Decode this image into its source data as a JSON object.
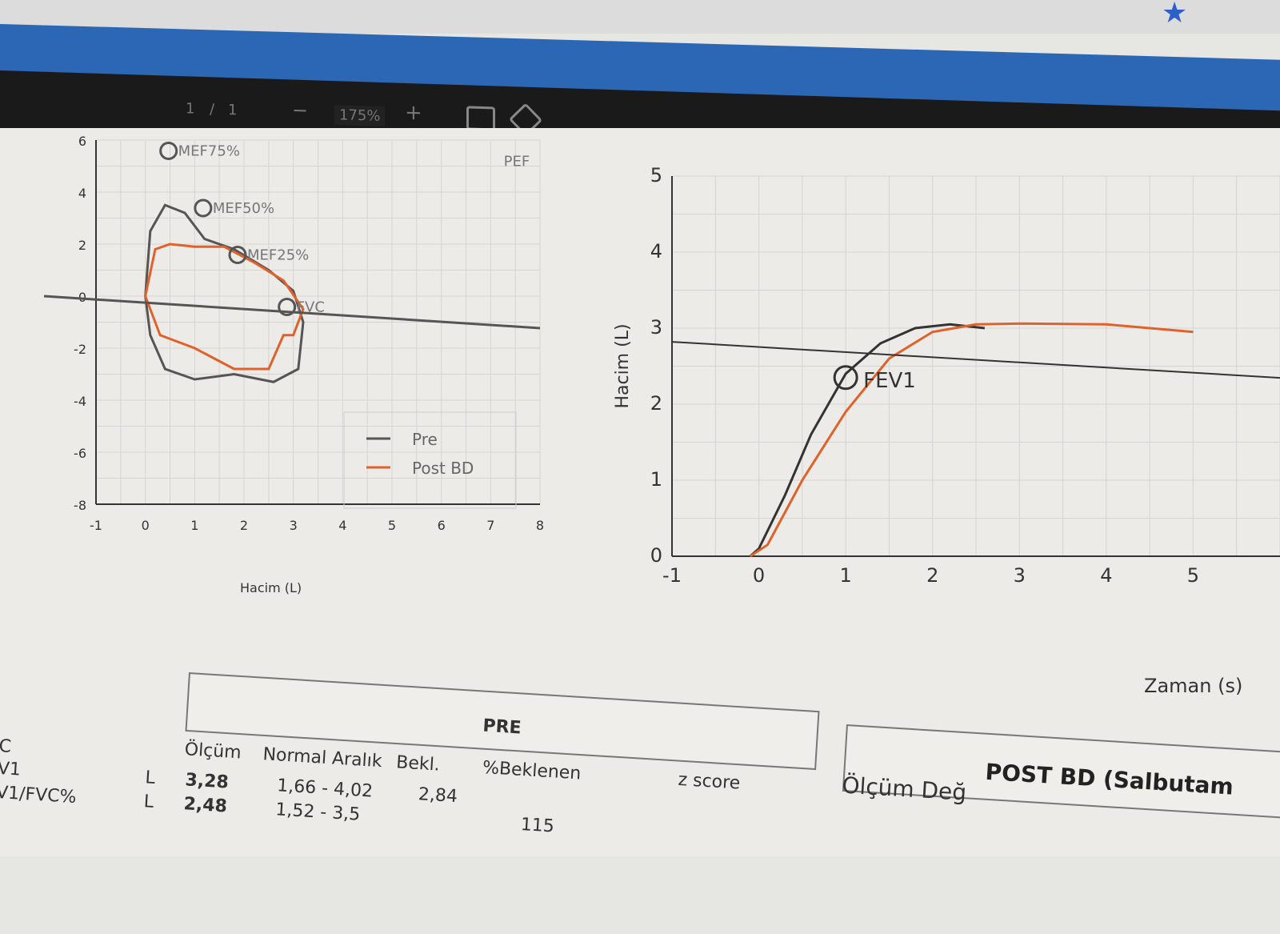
{
  "browser": {
    "bookmark_icon": "star-icon",
    "bookmark_color": "#2f5fc8"
  },
  "toolbar": {
    "page_current": "1",
    "page_sep": "/",
    "page_total": "1",
    "zoom_out": "−",
    "zoom": "175%",
    "zoom_in": "+",
    "fit_icon": "fit-page-icon",
    "rotate_icon": "rotate-icon"
  },
  "chart_data": [
    {
      "type": "line",
      "title": "",
      "xlabel": "Hacim (L)",
      "ylabel": "",
      "xlim": [
        -1,
        8
      ],
      "ylim": [
        -8,
        6
      ],
      "xticks": [
        "-1",
        "0",
        "1",
        "2",
        "3",
        "4",
        "5",
        "6",
        "7",
        "8"
      ],
      "yticks": [
        "6",
        "4",
        "2",
        "0",
        "-2",
        "-4",
        "-6",
        "-8"
      ],
      "annotations": [
        "MEF75%",
        "MEF50%",
        "MEF25%",
        "PEF",
        "FVC"
      ],
      "legend": [
        "Pre",
        "Post BD"
      ],
      "legend_position": "bottom-right",
      "grid": true,
      "series": [
        {
          "name": "Pre",
          "color": "#555555",
          "x": [
            0,
            0.1,
            0.4,
            0.8,
            1.2,
            1.8,
            2.5,
            3.0,
            3.2,
            3.1,
            2.6,
            1.8,
            1.0,
            0.4,
            0.1,
            0
          ],
          "y": [
            0,
            2.5,
            3.5,
            3.2,
            2.2,
            1.8,
            1.0,
            0.2,
            -1,
            -2.8,
            -3.3,
            -3.0,
            -3.2,
            -2.8,
            -1.5,
            0
          ]
        },
        {
          "name": "Post BD",
          "color": "#e0622a",
          "x": [
            0,
            0.2,
            0.5,
            1.0,
            1.6,
            2.2,
            2.8,
            3.2,
            3.0,
            2.8,
            2.5,
            1.8,
            1.0,
            0.3,
            0
          ],
          "y": [
            0,
            1.8,
            2.0,
            1.9,
            1.9,
            1.3,
            0.6,
            -0.5,
            -1.5,
            -1.5,
            -2.8,
            -2.8,
            -2.0,
            -1.5,
            0
          ]
        }
      ]
    },
    {
      "type": "line",
      "title": "",
      "xlabel": "Zaman (s)",
      "ylabel": "Hacim (L)",
      "xlim": [
        -1,
        6
      ],
      "ylim": [
        0,
        5
      ],
      "xticks": [
        "-1",
        "0",
        "1",
        "2",
        "3",
        "4",
        "5"
      ],
      "yticks": [
        "0",
        "1",
        "2",
        "3",
        "4",
        "5"
      ],
      "annotations": [
        "FEV1"
      ],
      "grid": true,
      "series": [
        {
          "name": "Pre",
          "color": "#333333",
          "x": [
            -0.1,
            0,
            0.3,
            0.6,
            1.0,
            1.4,
            1.8,
            2.2,
            2.6
          ],
          "y": [
            0,
            0.1,
            0.8,
            1.6,
            2.4,
            2.8,
            3.0,
            3.05,
            3.0
          ]
        },
        {
          "name": "Post BD",
          "color": "#e0622a",
          "x": [
            -0.1,
            0.1,
            0.5,
            1.0,
            1.5,
            2.0,
            2.5,
            3,
            4,
            5
          ],
          "y": [
            0,
            0.15,
            1.0,
            1.9,
            2.6,
            2.95,
            3.05,
            3.06,
            3.05,
            2.95
          ]
        }
      ]
    }
  ],
  "pre_box": {
    "title": "PRE"
  },
  "post_box": {
    "title": "POST BD (Salbutam"
  },
  "table": {
    "headers": [
      "Ölçüm",
      "Normal Aralık",
      "Bekl.",
      "%Beklenen",
      "z score"
    ],
    "post_header": "Ölçüm Değ",
    "rows": [
      {
        "label": "C",
        "unit": "",
        "measure": "",
        "range": "",
        "pred": "",
        "pct": ""
      },
      {
        "label": "V1",
        "unit": "L",
        "measure": "3,28",
        "range": "1,66 - 4,02",
        "pred": "2,84",
        "pct": ""
      },
      {
        "label": "V1/FVC%",
        "unit": "L",
        "measure": "2,48",
        "range": "1,52 - 3,5",
        "pred": "",
        "pct": "115"
      }
    ]
  }
}
